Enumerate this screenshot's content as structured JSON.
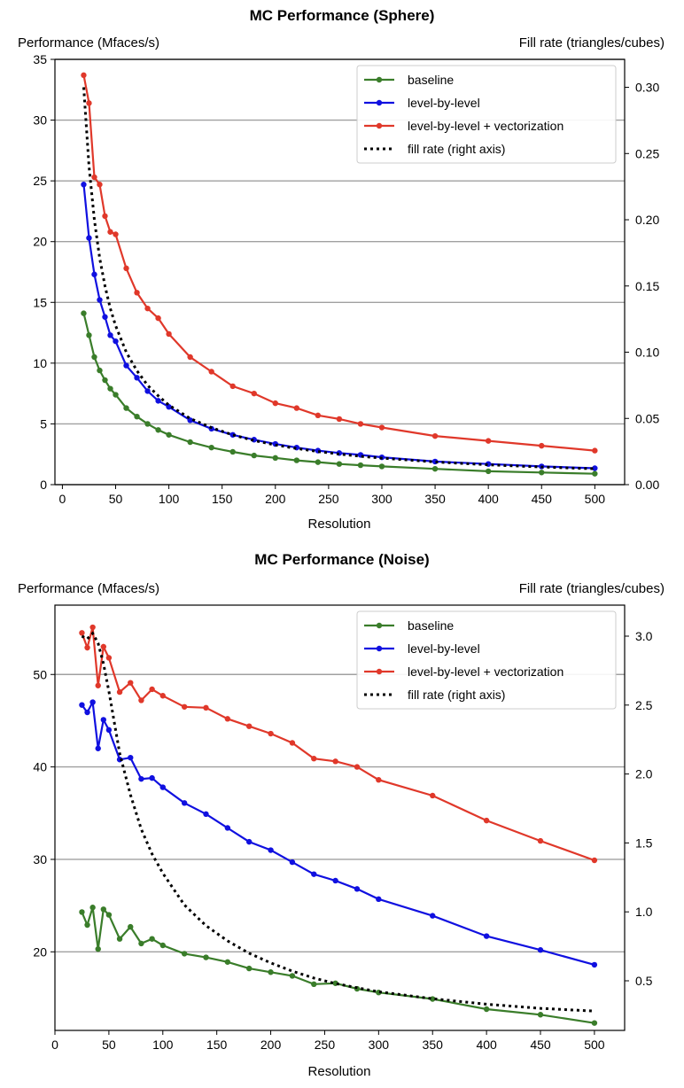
{
  "colors": {
    "baseline": "#3a7d2a",
    "level_by_level": "#1010e0",
    "vectorization": "#e0382a",
    "fill_rate": "#000000",
    "grid": "#a0a0a0"
  },
  "chart_data": [
    {
      "type": "line",
      "title": "MC Performance (Sphere)",
      "ylabel": "Performance (Mfaces/s)",
      "y2label": "Fill rate (triangles/cubes)",
      "xlabel": "Resolution",
      "xlim": [
        -7,
        528
      ],
      "ylim": [
        0,
        35
      ],
      "y2lim": [
        0,
        0.3211
      ],
      "xticks": [
        0,
        50,
        100,
        150,
        200,
        250,
        300,
        350,
        400,
        450,
        500
      ],
      "yticks": [
        0,
        5,
        10,
        15,
        20,
        25,
        30,
        35
      ],
      "y2ticks": [
        0.0,
        0.05,
        0.1,
        0.15,
        0.2,
        0.25,
        0.3
      ],
      "ytick_labels": [
        "0",
        "5",
        "10",
        "15",
        "20",
        "25",
        "30",
        "35"
      ],
      "y2tick_labels": [
        "0.00",
        "0.05",
        "0.10",
        "0.15",
        "0.20",
        "0.25",
        "0.30"
      ],
      "grid": "horizontal",
      "legend_position": "top-right",
      "x": [
        20,
        25,
        30,
        35,
        40,
        45,
        50,
        60,
        70,
        80,
        90,
        100,
        120,
        140,
        160,
        180,
        200,
        220,
        240,
        260,
        280,
        300,
        350,
        400,
        450,
        500
      ],
      "series": [
        {
          "name": "baseline",
          "color_key": "baseline",
          "style": "line-dot",
          "axis": "left",
          "values": [
            14.1,
            12.3,
            10.5,
            9.4,
            8.6,
            7.9,
            7.4,
            6.3,
            5.6,
            5.0,
            4.5,
            4.1,
            3.5,
            3.05,
            2.7,
            2.4,
            2.2,
            2.0,
            1.85,
            1.7,
            1.6,
            1.5,
            1.3,
            1.1,
            1.0,
            0.9
          ]
        },
        {
          "name": "level-by-level",
          "color_key": "level_by_level",
          "style": "line-dot",
          "axis": "left",
          "values": [
            24.7,
            20.3,
            17.3,
            15.2,
            13.8,
            12.3,
            11.8,
            9.8,
            8.8,
            7.7,
            6.9,
            6.4,
            5.3,
            4.6,
            4.1,
            3.7,
            3.35,
            3.05,
            2.8,
            2.6,
            2.45,
            2.25,
            1.9,
            1.7,
            1.5,
            1.35
          ]
        },
        {
          "name": "level-by-level + vectorization",
          "color_key": "vectorization",
          "style": "line-dot",
          "axis": "left",
          "values": [
            33.7,
            31.4,
            25.3,
            24.7,
            22.1,
            20.8,
            20.6,
            17.8,
            15.8,
            14.5,
            13.7,
            12.4,
            10.5,
            9.3,
            8.1,
            7.5,
            6.7,
            6.3,
            5.7,
            5.4,
            5.0,
            4.7,
            4.0,
            3.6,
            3.2,
            2.8
          ]
        },
        {
          "name": "fill rate (right axis)",
          "color_key": "fill_rate",
          "style": "dotted",
          "axis": "right",
          "x": [
            20,
            25,
            30,
            35,
            40,
            45,
            50,
            60,
            70,
            80,
            90,
            100,
            120,
            140,
            160,
            180,
            200,
            220,
            240,
            260,
            280,
            300,
            350,
            400,
            450,
            500
          ],
          "values": [
            0.3,
            0.24,
            0.2,
            0.171,
            0.15,
            0.133,
            0.12,
            0.1,
            0.086,
            0.075,
            0.067,
            0.06,
            0.05,
            0.043,
            0.0375,
            0.0333,
            0.03,
            0.0273,
            0.025,
            0.0231,
            0.0214,
            0.02,
            0.0171,
            0.015,
            0.0133,
            0.012
          ]
        }
      ]
    },
    {
      "type": "line",
      "title": "MC Performance (Noise)",
      "ylabel": "Performance (Mfaces/s)",
      "y2label": "Fill rate (triangles/cubes)",
      "xlabel": "Resolution",
      "xlim": [
        0,
        528
      ],
      "ylim": [
        11.5,
        57.5
      ],
      "y2lim": [
        0.14,
        3.225
      ],
      "xticks": [
        0,
        50,
        100,
        150,
        200,
        250,
        300,
        350,
        400,
        450,
        500
      ],
      "yticks": [
        20,
        30,
        40,
        50
      ],
      "y2ticks": [
        0.5,
        1.0,
        1.5,
        2.0,
        2.5,
        3.0
      ],
      "ytick_labels": [
        "20",
        "30",
        "40",
        "50"
      ],
      "y2tick_labels": [
        "0.5",
        "1.0",
        "1.5",
        "2.0",
        "2.5",
        "3.0"
      ],
      "grid": "horizontal",
      "legend_position": "top-right",
      "x": [
        25,
        30,
        35,
        40,
        45,
        50,
        60,
        70,
        80,
        90,
        100,
        120,
        140,
        160,
        180,
        200,
        220,
        240,
        260,
        280,
        300,
        350,
        400,
        450,
        500
      ],
      "series": [
        {
          "name": "baseline",
          "color_key": "baseline",
          "style": "line-dot",
          "axis": "left",
          "values": [
            24.3,
            22.9,
            24.8,
            20.3,
            24.6,
            24.0,
            21.4,
            22.7,
            20.9,
            21.4,
            20.7,
            19.8,
            19.4,
            18.9,
            18.2,
            17.8,
            17.4,
            16.5,
            16.6,
            16.0,
            15.6,
            14.9,
            13.8,
            13.2,
            12.3
          ]
        },
        {
          "name": "level-by-level",
          "color_key": "level_by_level",
          "style": "line-dot",
          "axis": "left",
          "values": [
            46.7,
            45.9,
            47.0,
            42.0,
            45.1,
            44.0,
            40.8,
            41.0,
            38.7,
            38.8,
            37.8,
            36.1,
            34.9,
            33.4,
            31.9,
            31.0,
            29.7,
            28.4,
            27.7,
            26.8,
            25.7,
            23.9,
            21.7,
            20.2,
            18.6
          ]
        },
        {
          "name": "level-by-level + vectorization",
          "color_key": "vectorization",
          "style": "line-dot",
          "axis": "left",
          "values": [
            54.5,
            52.9,
            55.1,
            48.8,
            53.0,
            51.8,
            48.1,
            49.1,
            47.2,
            48.4,
            47.7,
            46.5,
            46.4,
            45.2,
            44.4,
            43.6,
            42.6,
            40.9,
            40.6,
            40.0,
            38.6,
            36.9,
            34.2,
            32.0,
            29.9
          ]
        },
        {
          "name": "fill rate (right axis)",
          "color_key": "fill_rate",
          "style": "dotted",
          "axis": "right",
          "x": [
            25,
            30,
            35,
            40,
            45,
            50,
            60,
            70,
            80,
            90,
            100,
            120,
            140,
            160,
            180,
            200,
            220,
            240,
            260,
            280,
            300,
            350,
            400,
            450,
            500
          ],
          "values": [
            3.0,
            2.98,
            3.02,
            2.95,
            2.8,
            2.6,
            2.15,
            1.85,
            1.6,
            1.42,
            1.28,
            1.05,
            0.9,
            0.79,
            0.7,
            0.63,
            0.57,
            0.52,
            0.48,
            0.45,
            0.42,
            0.37,
            0.33,
            0.3,
            0.28
          ]
        }
      ]
    }
  ]
}
